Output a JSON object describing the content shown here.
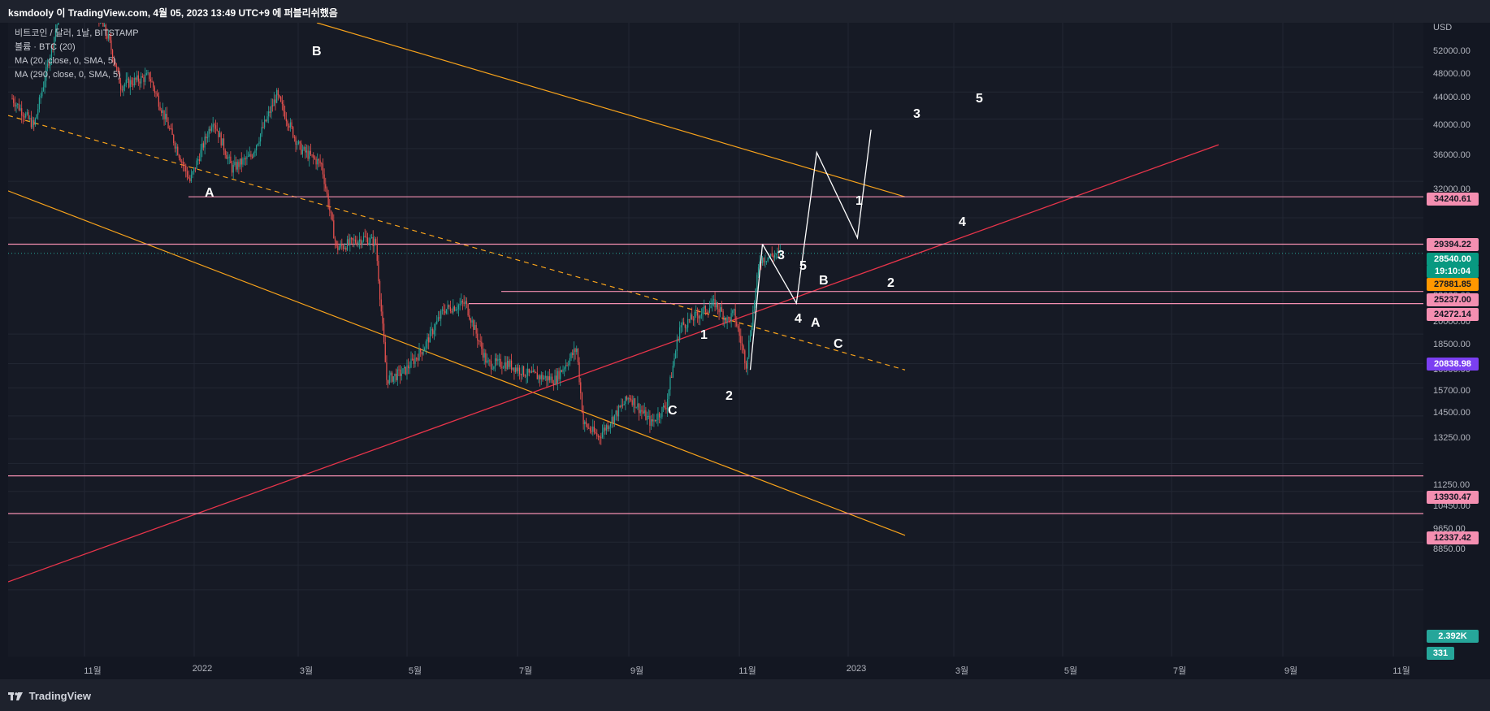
{
  "title": "ksmdooly 이 TradingView.com, 4월 05, 2023 13:49 UTC+9 에 퍼블리쉬했음",
  "brand": "TradingView",
  "legend": [
    "비트코인 / 달러, 1날, BITSTAMP",
    "볼륨 · BTC (20)",
    "MA (20, close, 0, SMA, 5)",
    "MA (290, close, 0, SMA, 5)"
  ],
  "price_axis": {
    "currency": "USD",
    "ticks": [
      "52000.00",
      "48000.00",
      "44000.00",
      "40000.00",
      "36000.00",
      "32000.00",
      "22000.00",
      "20000.00",
      "18500.00",
      "16900.00",
      "15700.00",
      "14500.00",
      "13250.00",
      "11250.00",
      "10450.00",
      "9650.00",
      "8850.00"
    ]
  },
  "price_tags": [
    {
      "label": "34240.61",
      "bg": "#f48fb1",
      "fg": "#131722"
    },
    {
      "label": "29394.22",
      "bg": "#f48fb1",
      "fg": "#131722"
    },
    {
      "label": "28540.00",
      "bg": "#089981",
      "fg": "#ffffff"
    },
    {
      "label": "19:10:04",
      "bg": "#089981",
      "fg": "#ffffff"
    },
    {
      "label": "27881.85",
      "bg": "#ff9800",
      "fg": "#131722"
    },
    {
      "label": "25237.00",
      "bg": "#f48fb1",
      "fg": "#131722"
    },
    {
      "label": "24272.14",
      "bg": "#f48fb1",
      "fg": "#131722"
    },
    {
      "label": "20838.98",
      "bg": "#7b3ff2",
      "fg": "#ffffff"
    },
    {
      "label": "13930.47",
      "bg": "#f48fb1",
      "fg": "#131722"
    },
    {
      "label": "12337.42",
      "bg": "#f48fb1",
      "fg": "#131722"
    },
    {
      "label": "2.392K",
      "bg": "#26a69a",
      "fg": "#ffffff"
    },
    {
      "label": "331",
      "bg": "#26a69a",
      "fg": "#ffffff"
    }
  ],
  "time_axis": [
    "11월",
    "2022",
    "3월",
    "5월",
    "7월",
    "9월",
    "11월",
    "2023",
    "3월",
    "5월",
    "7월",
    "9월",
    "11월"
  ],
  "colors": {
    "up": "#26a69a",
    "down": "#ef5350",
    "orange": "#f7a21b",
    "red_line": "#e6344a",
    "pink": "#f48fb1",
    "white": "#ffffff",
    "background": "#161a25"
  },
  "wave_labels": [
    "B",
    "A",
    "1",
    "2",
    "C",
    "3",
    "5",
    "B",
    "4",
    "A",
    "C",
    "1",
    "2",
    "3",
    "4",
    "5"
  ],
  "chart_data": {
    "type": "candlestick",
    "symbol": "BTC/USD",
    "exchange": "BITSTAMP",
    "interval": "1D",
    "currency": "USD",
    "y_scale": "log",
    "x_range": [
      "2021-09-12",
      "2023-12-15"
    ],
    "y_range": [
      8200,
      60000
    ],
    "grid": true,
    "price_path": [
      [
        "2021-09-15",
        47000
      ],
      [
        "2021-10-01",
        43000
      ],
      [
        "2021-10-20",
        62000
      ],
      [
        "2021-11-08",
        67000
      ],
      [
        "2021-11-25",
        57000
      ],
      [
        "2021-12-04",
        49000
      ],
      [
        "2021-12-25",
        50500
      ],
      [
        "2022-01-10",
        42000
      ],
      [
        "2022-01-24",
        36000
      ],
      [
        "2022-02-10",
        44000
      ],
      [
        "2022-02-24",
        37500
      ],
      [
        "2022-03-10",
        39000
      ],
      [
        "2022-03-29",
        47500
      ],
      [
        "2022-04-15",
        40000
      ],
      [
        "2022-05-01",
        38000
      ],
      [
        "2022-05-12",
        29000
      ],
      [
        "2022-06-01",
        30000
      ],
      [
        "2022-06-10",
        29500
      ],
      [
        "2022-06-18",
        19000
      ],
      [
        "2022-07-01",
        19500
      ],
      [
        "2022-07-15",
        21000
      ],
      [
        "2022-07-30",
        23800
      ],
      [
        "2022-08-15",
        24300
      ],
      [
        "2022-08-31",
        20000
      ],
      [
        "2022-09-15",
        20000
      ],
      [
        "2022-10-01",
        19300
      ],
      [
        "2022-10-20",
        19000
      ],
      [
        "2022-11-05",
        21000
      ],
      [
        "2022-11-10",
        16500
      ],
      [
        "2022-11-21",
        15800
      ],
      [
        "2022-12-14",
        18000
      ],
      [
        "2022-12-30",
        16500
      ],
      [
        "2023-01-10",
        17500
      ],
      [
        "2023-01-20",
        22500
      ],
      [
        "2023-02-15",
        24300
      ],
      [
        "2023-02-24",
        23000
      ],
      [
        "2023-03-01",
        23500
      ],
      [
        "2023-03-10",
        20000
      ],
      [
        "2023-03-20",
        28000
      ],
      [
        "2023-04-04",
        28540
      ]
    ],
    "last_price": 28540.0,
    "horizontal_levels": [
      34240.61,
      29394.22,
      25237.0,
      24272.14,
      13930.47,
      12337.42
    ],
    "wave_projection": [
      [
        "2023-03-22",
        29394
      ],
      [
        "2023-04-16",
        24300
      ],
      [
        "2023-05-01",
        39500
      ],
      [
        "2023-05-31",
        30000
      ],
      [
        "2023-06-10",
        42500
      ]
    ]
  }
}
